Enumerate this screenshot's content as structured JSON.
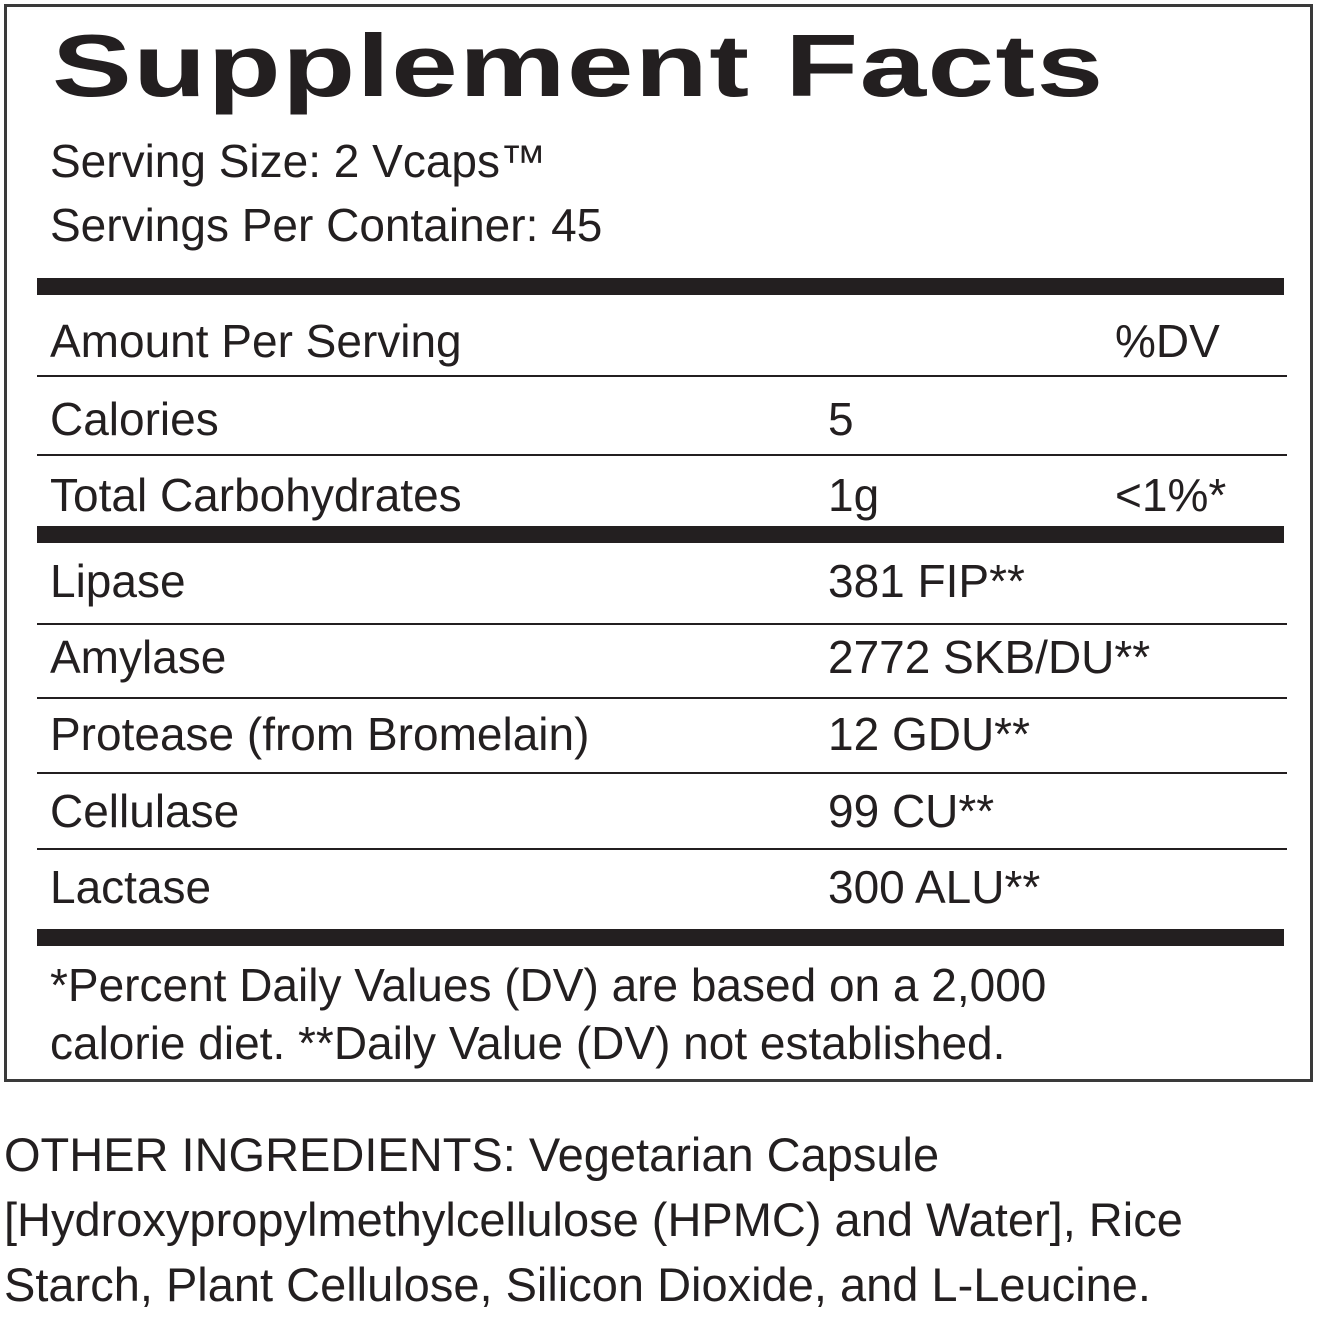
{
  "label": {
    "title": "Supplement Facts",
    "serving_size": "Serving Size: 2 Vcaps™",
    "servings_per_container": "Servings Per Container: 45",
    "header": {
      "amount": "Amount Per Serving",
      "dv": "%DV"
    },
    "rows": [
      {
        "name": "Calories",
        "amount": "5",
        "dv": ""
      },
      {
        "name": "Total Carbohydrates",
        "amount": "1g",
        "dv": "<1%*"
      },
      {
        "name": "Lipase",
        "amount": "381 FIP**",
        "dv": ""
      },
      {
        "name": "Amylase",
        "amount": "2772 SKB/DU**",
        "dv": ""
      },
      {
        "name": "Protease (from Bromelain)",
        "amount": "12 GDU**",
        "dv": ""
      },
      {
        "name": "Cellulase",
        "amount": "99 CU**",
        "dv": ""
      },
      {
        "name": "Lactase",
        "amount": "300 ALU**",
        "dv": ""
      }
    ],
    "footnote_line1": "*Percent Daily Values (DV) are based on a 2,000",
    "footnote_line2": "calorie diet. **Daily Value (DV) not established."
  },
  "other_ingredients": "OTHER INGREDIENTS: Vegetarian Capsule [Hydroxypropylmethylcellulose (HPMC) and Water], Rice Starch, Plant Cellulose, Silicon Dioxide, and L-Leucine."
}
